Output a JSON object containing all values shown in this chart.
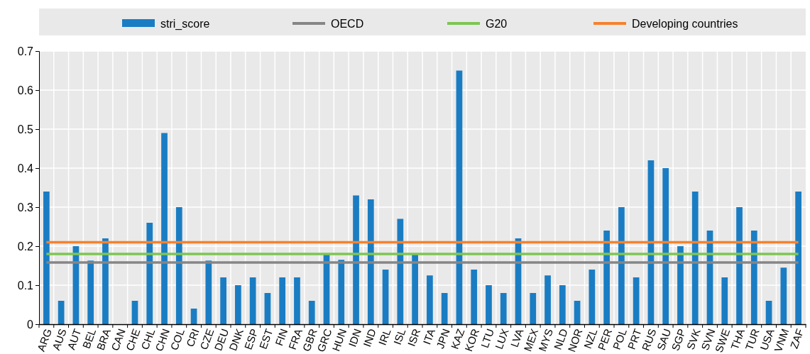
{
  "chart_data": {
    "type": "bar",
    "categories": [
      "ARG",
      "AUS",
      "AUT",
      "BEL",
      "BRA",
      "CAN",
      "CHE",
      "CHL",
      "CHN",
      "COL",
      "CRI",
      "CZE",
      "DEU",
      "DNK",
      "ESP",
      "EST",
      "FIN",
      "FRA",
      "GBR",
      "GRC",
      "HUN",
      "IDN",
      "IND",
      "IRL",
      "ISL",
      "ISR",
      "ITA",
      "JPN",
      "KAZ",
      "KOR",
      "LTU",
      "LUX",
      "LVA",
      "MEX",
      "MYS",
      "NLD",
      "NOR",
      "NZL",
      "PER",
      "POL",
      "PRT",
      "RUS",
      "SAU",
      "SGP",
      "SVK",
      "SVN",
      "SWE",
      "THA",
      "TUR",
      "USA",
      "VNM",
      "ZAF"
    ],
    "series": [
      {
        "name": "stri_score",
        "color": "#1a7dc3",
        "values": [
          0.34,
          0.06,
          0.2,
          0.163,
          0.22,
          0,
          0.06,
          0.26,
          0.49,
          0.3,
          0.04,
          0.163,
          0.12,
          0.1,
          0.12,
          0.08,
          0.12,
          0.12,
          0.06,
          0.18,
          0.165,
          0.33,
          0.32,
          0.14,
          0.27,
          0.18,
          0.125,
          0.08,
          0.65,
          0.14,
          0.1,
          0.08,
          0.22,
          0.08,
          0.125,
          0.1,
          0.06,
          0.14,
          0.24,
          0.3,
          0.12,
          0.42,
          0.4,
          0.2,
          0.34,
          0.24,
          0.12,
          0.3,
          0.24,
          0.06,
          0.145,
          0.34
        ]
      },
      {
        "name": "OECD",
        "type": "line",
        "color": "#868686",
        "values": [
          0.158,
          0.158,
          0.158,
          0.158,
          0.158,
          0.158,
          0.158,
          0.158,
          0.158,
          0.158,
          0.158,
          0.158,
          0.158,
          0.158,
          0.158,
          0.158,
          0.158,
          0.158,
          0.158,
          0.158,
          0.158,
          0.158,
          0.158,
          0.158,
          0.158,
          0.158,
          0.158,
          0.158,
          0.158,
          0.158,
          0.158,
          0.158,
          0.158,
          0.158,
          0.158,
          0.158,
          0.158,
          0.158,
          0.158,
          0.158,
          0.158,
          0.158,
          0.158,
          0.158,
          0.158,
          0.158,
          0.158,
          0.158,
          0.158,
          0.158,
          0.158,
          0.158
        ]
      },
      {
        "name": "G20",
        "type": "line",
        "color": "#7cc652",
        "values": [
          0.18,
          0.18,
          0.18,
          0.18,
          0.18,
          0.18,
          0.18,
          0.18,
          0.18,
          0.18,
          0.18,
          0.18,
          0.18,
          0.18,
          0.18,
          0.18,
          0.18,
          0.18,
          0.18,
          0.18,
          0.18,
          0.18,
          0.18,
          0.18,
          0.18,
          0.18,
          0.18,
          0.18,
          0.18,
          0.18,
          0.18,
          0.18,
          0.18,
          0.18,
          0.18,
          0.18,
          0.18,
          0.18,
          0.18,
          0.18,
          0.18,
          0.18,
          0.18,
          0.18,
          0.18,
          0.18,
          0.18,
          0.18,
          0.18,
          0.18,
          0.18,
          0.18
        ]
      },
      {
        "name": "Developing countries",
        "type": "line",
        "color": "#f5822f",
        "values": [
          0.21,
          0.21,
          0.21,
          0.21,
          0.21,
          0.21,
          0.21,
          0.21,
          0.21,
          0.21,
          0.21,
          0.21,
          0.21,
          0.21,
          0.21,
          0.21,
          0.21,
          0.21,
          0.21,
          0.21,
          0.21,
          0.21,
          0.21,
          0.21,
          0.21,
          0.21,
          0.21,
          0.21,
          0.21,
          0.21,
          0.21,
          0.21,
          0.21,
          0.21,
          0.21,
          0.21,
          0.21,
          0.21,
          0.21,
          0.21,
          0.21,
          0.21,
          0.21,
          0.21,
          0.21,
          0.21,
          0.21,
          0.21,
          0.21,
          0.21,
          0.21,
          0.21
        ]
      }
    ],
    "ylim": [
      0,
      0.7
    ],
    "yticks": [
      0,
      0.1,
      0.2,
      0.3,
      0.4,
      0.5,
      0.6,
      0.7
    ],
    "grid": true,
    "legend": "top",
    "marker": "none",
    "line_style": "solid"
  }
}
